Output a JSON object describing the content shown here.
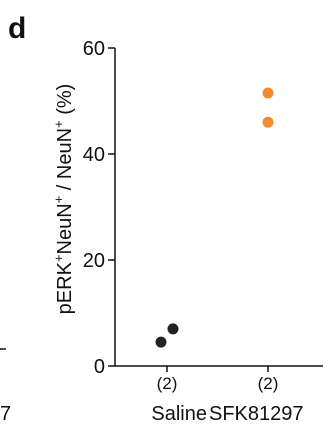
{
  "panel_letter": "d",
  "left_fragment": "7",
  "chart_data": {
    "type": "scatter",
    "categories": [
      "Saline",
      "SFK81297"
    ],
    "group_n": [
      "(2)",
      "(2)"
    ],
    "ylabel_parts": [
      {
        "t": "pERK",
        "sup": false
      },
      {
        "t": "+",
        "sup": true
      },
      {
        "t": "NeuN",
        "sup": false
      },
      {
        "t": "+",
        "sup": true
      },
      {
        "t": " / NeuN",
        "sup": false
      },
      {
        "t": "+",
        "sup": true
      },
      {
        "t": " (%)",
        "sup": false
      }
    ],
    "ylim": [
      0,
      60
    ],
    "yticks": [
      0,
      20,
      40,
      60
    ],
    "series": [
      {
        "category": "Saline",
        "color": "#222222",
        "points": [
          {
            "offset": -0.1,
            "y": 4.5
          },
          {
            "offset": 0.1,
            "y": 7.0
          }
        ]
      },
      {
        "category": "SFK81297",
        "color": "#f28c30",
        "points": [
          {
            "offset": 0.0,
            "y": 51.5
          },
          {
            "offset": 0.0,
            "y": 46.0
          }
        ]
      }
    ],
    "grid": false,
    "legend": "none"
  }
}
